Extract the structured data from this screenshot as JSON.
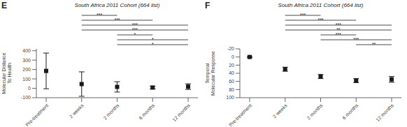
{
  "chart_data": [
    {
      "type": "line",
      "panel_label": "E",
      "title": "South Africa 2011 Cohort (664 list)",
      "ylabel": "Molecular Distance\nTo Health",
      "categories": [
        "Pre-treatment",
        "2 weeks",
        "2 months",
        "6 months",
        "12 months"
      ],
      "values": [
        185,
        45,
        15,
        8,
        18
      ],
      "errors": [
        190,
        130,
        55,
        15,
        30
      ],
      "color": "#1a1a1a",
      "marker": "square",
      "line_style": "none",
      "ylim": [
        -100,
        420
      ],
      "yticks": [
        -100,
        0,
        100,
        200,
        300,
        400
      ],
      "annotations": [
        {
          "from": "2 weeks",
          "to": "2 months",
          "text": "***"
        },
        {
          "from": "2 weeks",
          "to": "6 months",
          "text": "***"
        },
        {
          "from": "2 weeks",
          "to": "12 months",
          "text": "***"
        },
        {
          "from": "2 weeks",
          "to": "12 months",
          "text": "***"
        },
        {
          "from": "2 months",
          "to": "6 months",
          "text": "*"
        },
        {
          "from": "2 months",
          "to": "12 months",
          "text": "*"
        },
        {
          "from": "2 months",
          "to": "12 months",
          "text": "*"
        }
      ]
    },
    {
      "type": "line",
      "panel_label": "F",
      "title": "South Africa 2011 Cohort (664 list)",
      "ylabel": "Temporal\nMolecular Response",
      "categories": [
        "Pre-treatment",
        "2 weeks",
        "2 months",
        "6 months",
        "12 months"
      ],
      "values": [
        0,
        30,
        48,
        58,
        55
      ],
      "errors": [
        1,
        5,
        5,
        5,
        7
      ],
      "color": "#1a1a1a",
      "marker": "square",
      "line_style": "none",
      "ylim": [
        100,
        -20
      ],
      "yticks": [
        -20,
        0,
        20,
        40,
        60,
        80,
        100
      ],
      "annotations": [
        {
          "from": "2 weeks",
          "to": "2 months",
          "text": "***"
        },
        {
          "from": "2 weeks",
          "to": "6 months",
          "text": "***"
        },
        {
          "from": "2 weeks",
          "to": "12 months",
          "text": "***"
        },
        {
          "from": "2 weeks",
          "to": "12 months",
          "text": "**"
        },
        {
          "from": "2 months",
          "to": "6 months",
          "text": "***"
        },
        {
          "from": "2 months",
          "to": "12 months",
          "text": "***"
        },
        {
          "from": "6 months",
          "to": "12 months",
          "text": "**"
        }
      ]
    }
  ]
}
